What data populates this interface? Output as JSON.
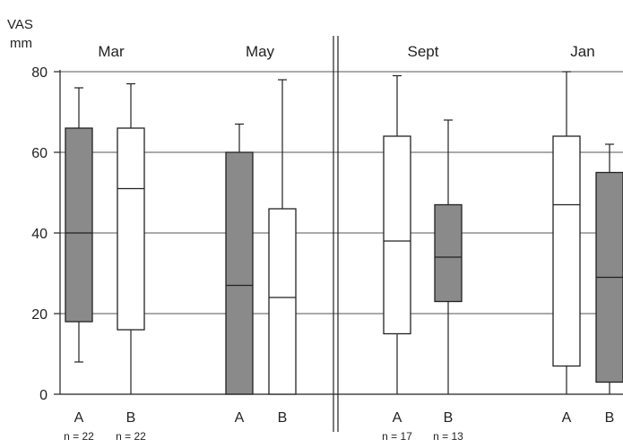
{
  "chart_data": {
    "type": "box",
    "ylabel": "VAS",
    "yunit": "mm",
    "ylim": [
      0,
      80
    ],
    "yticks": [
      0,
      20,
      40,
      60,
      80
    ],
    "grid": true,
    "colors": {
      "shaded": "#8a8a8a",
      "open": "#ffffff",
      "line": "#222222",
      "grid": "#555555"
    },
    "panels": [
      {
        "label": "Mar",
        "boxes": [
          {
            "group": "A",
            "n_label": "n = 22",
            "shaded": true,
            "whisker_low": 8,
            "q1": 18,
            "median": 40,
            "q3": 66,
            "whisker_high": 76
          },
          {
            "group": "B",
            "n_label": "n = 22",
            "shaded": false,
            "whisker_low": 0,
            "q1": 16,
            "median": 51,
            "q3": 66,
            "whisker_high": 77
          }
        ]
      },
      {
        "label": "May",
        "boxes": [
          {
            "group": "A",
            "n_label": "",
            "shaded": true,
            "whisker_low": 0,
            "q1": 0,
            "median": 27,
            "q3": 60,
            "whisker_high": 67
          },
          {
            "group": "B",
            "n_label": "",
            "shaded": false,
            "whisker_low": 0,
            "q1": 0,
            "median": 24,
            "q3": 46,
            "whisker_high": 78
          }
        ]
      },
      {
        "label": "Sept",
        "boxes": [
          {
            "group": "A",
            "n_label": "n = 17",
            "shaded": false,
            "whisker_low": 0,
            "q1": 15,
            "median": 38,
            "q3": 64,
            "whisker_high": 79
          },
          {
            "group": "B",
            "n_label": "n = 13",
            "shaded": true,
            "whisker_low": 0,
            "q1": 23,
            "median": 34,
            "q3": 47,
            "whisker_high": 68
          }
        ]
      },
      {
        "label": "Jan",
        "boxes": [
          {
            "group": "A",
            "n_label": "",
            "shaded": false,
            "whisker_low": 0,
            "q1": 7,
            "median": 47,
            "q3": 64,
            "whisker_high": 80
          },
          {
            "group": "B",
            "n_label": "",
            "shaded": true,
            "whisker_low": 0,
            "q1": 3,
            "median": 29,
            "q3": 55,
            "whisker_high": 62
          }
        ]
      }
    ]
  }
}
